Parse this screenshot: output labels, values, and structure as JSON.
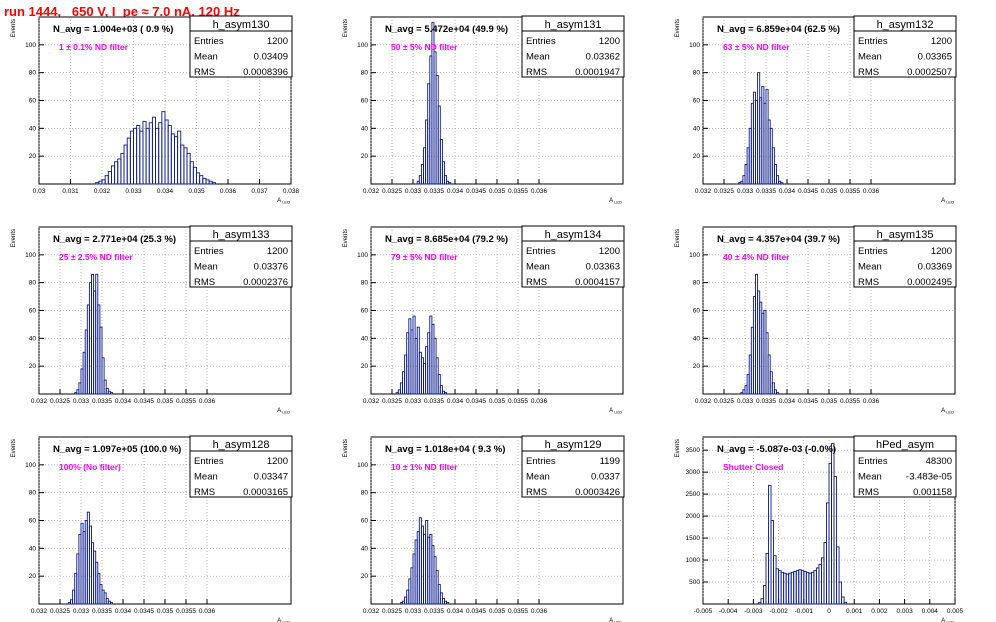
{
  "header": {
    "title": "run 1444,   650 V, I_pe ≈ 7.0 nA, 120 Hz"
  },
  "colors": {
    "histogram": "#0a1a8c",
    "title_text": "#ff0000",
    "filter_text": "#ff00ff",
    "grid": "#9a9a9a"
  },
  "chart_data": [
    {
      "type": "bar",
      "name": "h_asym130",
      "navg": "N_avg = 1.004e+03 ( 0.9 %)",
      "filter": "1 ± 0.1% ND filter",
      "stats": [
        [
          "Entries",
          "1200"
        ],
        [
          "Mean",
          "0.03409"
        ],
        [
          "RMS",
          "0.0008396"
        ]
      ],
      "ylabel": "Events",
      "xlabel": "A_LED",
      "xlim": [
        0.03,
        0.038
      ],
      "ylim": [
        0,
        120
      ],
      "xticks": [
        0.03,
        0.031,
        0.032,
        0.033,
        0.034,
        0.035,
        0.036,
        0.037,
        0.038
      ],
      "xtick_labels": [
        "0.03",
        "0.031",
        "0.032",
        "0.033",
        "0.034",
        "0.035",
        "0.036",
        "0.037",
        "0.038"
      ],
      "yticks": [
        20,
        40,
        60,
        80,
        100
      ],
      "bin_start": 0.0318,
      "bin_width": 0.0001,
      "counts": [
        1,
        2,
        3,
        6,
        9,
        13,
        16,
        18,
        22,
        28,
        33,
        38,
        40,
        42,
        38,
        45,
        40,
        44,
        48,
        40,
        44,
        52,
        46,
        42,
        36,
        34,
        38,
        28,
        26,
        22,
        16,
        12,
        8,
        6,
        4,
        3,
        2,
        1
      ]
    },
    {
      "type": "bar",
      "name": "h_asym131",
      "navg": "N_avg = 5.472e+04 (49.9 %)",
      "filter": "50 ± 5% ND filter",
      "stats": [
        [
          "Entries",
          "1200"
        ],
        [
          "Mean",
          "0.03362"
        ],
        [
          "RMS",
          "0.0001947"
        ]
      ],
      "ylabel": "Events",
      "xlabel": "A_LED",
      "xlim": [
        0.032,
        0.038
      ],
      "ylim": [
        0,
        120
      ],
      "xticks": [
        0.032,
        0.0325,
        0.033,
        0.0335,
        0.034,
        0.0345,
        0.035,
        0.0355,
        0.036
      ],
      "xtick_labels": [
        "0.032",
        "0.0325",
        "0.033",
        "0.0335",
        "0.034",
        "0.0345",
        "0.035",
        "0.0355",
        "0.036"
      ],
      "yticks": [
        20,
        40,
        60,
        80,
        100
      ],
      "bin_start": 0.0331,
      "bin_width": 5e-05,
      "counts": [
        2,
        6,
        14,
        26,
        46,
        72,
        92,
        116,
        95,
        78,
        56,
        32,
        16,
        6,
        2,
        1
      ]
    },
    {
      "type": "bar",
      "name": "h_asym132",
      "navg": "N_avg = 6.859e+04 (62.5 %)",
      "filter": "63 ± 5% ND filter",
      "stats": [
        [
          "Entries",
          "1200"
        ],
        [
          "Mean",
          "0.03365"
        ],
        [
          "RMS",
          "0.0002507"
        ]
      ],
      "ylabel": "Events",
      "xlabel": "A_LED",
      "xlim": [
        0.032,
        0.038
      ],
      "ylim": [
        0,
        120
      ],
      "xticks": [
        0.032,
        0.0325,
        0.033,
        0.0335,
        0.034,
        0.0345,
        0.035,
        0.0355,
        0.036
      ],
      "xtick_labels": [
        "0.032",
        "0.0325",
        "0.033",
        "0.0335",
        "0.034",
        "0.0345",
        "0.035",
        "0.0355",
        "0.036"
      ],
      "yticks": [
        20,
        40,
        60,
        80,
        100
      ],
      "bin_start": 0.03285,
      "bin_width": 5e-05,
      "counts": [
        1,
        2,
        6,
        14,
        26,
        40,
        58,
        66,
        60,
        80,
        62,
        70,
        58,
        68,
        46,
        40,
        26,
        14,
        6,
        2,
        1
      ]
    },
    {
      "type": "bar",
      "name": "h_asym133",
      "navg": "N_avg = 2.771e+04 (25.3 %)",
      "filter": "25 ± 2.5% ND filter",
      "stats": [
        [
          "Entries",
          "1200"
        ],
        [
          "Mean",
          "0.03376"
        ],
        [
          "RMS",
          "0.0002376"
        ]
      ],
      "ylabel": "Events",
      "xlabel": "A_LED",
      "xlim": [
        0.032,
        0.038
      ],
      "ylim": [
        0,
        120
      ],
      "xticks": [
        0.032,
        0.0325,
        0.033,
        0.0335,
        0.034,
        0.0345,
        0.035,
        0.0355,
        0.036
      ],
      "xtick_labels": [
        "0.032",
        "0.0325",
        "0.033",
        "0.0335",
        "0.034",
        "0.0345",
        "0.035",
        "0.0355",
        "0.036"
      ],
      "yticks": [
        20,
        40,
        60,
        80,
        100
      ],
      "bin_start": 0.03285,
      "bin_width": 5e-05,
      "counts": [
        1,
        3,
        8,
        18,
        30,
        46,
        64,
        80,
        86,
        74,
        86,
        64,
        48,
        26,
        10,
        4,
        2,
        1
      ]
    },
    {
      "type": "bar",
      "name": "h_asym134",
      "navg": "N_avg = 8.685e+04 (79.2 %)",
      "filter": "79 ± 5% ND filter",
      "stats": [
        [
          "Entries",
          "1200"
        ],
        [
          "Mean",
          "0.03363"
        ],
        [
          "RMS",
          "0.0004157"
        ]
      ],
      "ylabel": "Events",
      "xlabel": "A_LED",
      "xlim": [
        0.032,
        0.038
      ],
      "ylim": [
        0,
        120
      ],
      "xticks": [
        0.032,
        0.0325,
        0.033,
        0.0335,
        0.034,
        0.0345,
        0.035,
        0.0355,
        0.036
      ],
      "xtick_labels": [
        "0.032",
        "0.0325",
        "0.033",
        "0.0335",
        "0.034",
        "0.0345",
        "0.035",
        "0.0355",
        "0.036"
      ],
      "yticks": [
        20,
        40,
        60,
        80,
        100
      ],
      "bin_start": 0.0326,
      "bin_width": 5e-05,
      "counts": [
        1,
        3,
        8,
        16,
        28,
        44,
        54,
        46,
        56,
        40,
        48,
        30,
        26,
        22,
        34,
        44,
        56,
        50,
        40,
        26,
        14,
        6,
        2,
        1
      ]
    },
    {
      "type": "bar",
      "name": "h_asym135",
      "navg": "N_avg = 4.357e+04 (39.7 %)",
      "filter": "40 ± 4% ND filter",
      "stats": [
        [
          "Entries",
          "1200"
        ],
        [
          "Mean",
          "0.03369"
        ],
        [
          "RMS",
          "0.0002495"
        ]
      ],
      "ylabel": "Events",
      "xlabel": "A_LED",
      "xlim": [
        0.032,
        0.038
      ],
      "ylim": [
        0,
        120
      ],
      "xticks": [
        0.032,
        0.0325,
        0.033,
        0.0335,
        0.034,
        0.0345,
        0.035,
        0.0355,
        0.036
      ],
      "xtick_labels": [
        "0.032",
        "0.0325",
        "0.033",
        "0.0335",
        "0.034",
        "0.0345",
        "0.035",
        "0.0355",
        "0.036"
      ],
      "yticks": [
        20,
        40,
        60,
        80,
        100
      ],
      "bin_start": 0.0329,
      "bin_width": 5e-05,
      "counts": [
        1,
        3,
        6,
        14,
        28,
        48,
        70,
        86,
        74,
        66,
        58,
        60,
        44,
        28,
        16,
        8,
        3,
        1
      ]
    },
    {
      "type": "bar",
      "name": "h_asym128",
      "navg": "N_avg = 1.097e+05 (100.0 %)",
      "filter": "100% (No filter)",
      "stats": [
        [
          "Entries",
          "1200"
        ],
        [
          "Mean",
          "0.03347"
        ],
        [
          "RMS",
          "0.0003165"
        ]
      ],
      "ylabel": "Events",
      "xlabel": "A_LED",
      "xlim": [
        0.032,
        0.038
      ],
      "ylim": [
        0,
        120
      ],
      "xticks": [
        0.032,
        0.0325,
        0.033,
        0.0335,
        0.034,
        0.0345,
        0.035,
        0.0355,
        0.036
      ],
      "xtick_labels": [
        "0.032",
        "0.0325",
        "0.033",
        "0.0335",
        "0.034",
        "0.0345",
        "0.035",
        "0.0355",
        "0.036"
      ],
      "yticks": [
        20,
        40,
        60,
        80,
        100
      ],
      "bin_start": 0.0327,
      "bin_width": 5e-05,
      "counts": [
        1,
        3,
        10,
        22,
        36,
        50,
        58,
        52,
        60,
        66,
        56,
        44,
        38,
        30,
        22,
        14,
        10,
        8,
        4,
        2,
        1
      ]
    },
    {
      "type": "bar",
      "name": "h_asym129",
      "navg": "N_avg = 1.018e+04 ( 9.3 %)",
      "filter": "10 ± 1% ND filter",
      "stats": [
        [
          "Entries",
          "1199"
        ],
        [
          "Mean",
          "0.0337"
        ],
        [
          "RMS",
          "0.0003426"
        ]
      ],
      "ylabel": "Events",
      "xlabel": "A_LED",
      "xlim": [
        0.032,
        0.038
      ],
      "ylim": [
        0,
        120
      ],
      "xticks": [
        0.032,
        0.0325,
        0.033,
        0.0335,
        0.034,
        0.0345,
        0.035,
        0.0355,
        0.036
      ],
      "xtick_labels": [
        "0.032",
        "0.0325",
        "0.033",
        "0.0335",
        "0.034",
        "0.0345",
        "0.035",
        "0.0355",
        "0.036"
      ],
      "yticks": [
        20,
        40,
        60,
        80,
        100
      ],
      "bin_start": 0.0327,
      "bin_width": 5e-05,
      "counts": [
        1,
        2,
        5,
        10,
        18,
        26,
        36,
        46,
        52,
        62,
        56,
        50,
        60,
        48,
        50,
        42,
        34,
        24,
        14,
        8,
        4,
        2,
        1
      ]
    },
    {
      "type": "bar",
      "name": "hPed_asym",
      "navg": "N_avg = -5.087e-03 (-0.0%)",
      "filter": "Shutter Closed",
      "stats": [
        [
          "Entries",
          "48300"
        ],
        [
          "Mean",
          "-3.483e-05"
        ],
        [
          "RMS",
          "0.001158"
        ]
      ],
      "ylabel": "Events",
      "xlabel": "A_LED",
      "xlim": [
        -0.005,
        0.005
      ],
      "ylim": [
        0,
        3800
      ],
      "xticks": [
        -0.005,
        -0.004,
        -0.003,
        -0.002,
        -0.001,
        0,
        0.001,
        0.002,
        0.003,
        0.004,
        0.005
      ],
      "xtick_labels": [
        "-0.005",
        "-0.004",
        "-0.003",
        "-0.002",
        "-0.001",
        "0",
        "0.001",
        "0.002",
        "0.003",
        "0.004",
        "0.005"
      ],
      "yticks": [
        500,
        1000,
        1500,
        2000,
        2500,
        3000,
        3500
      ],
      "bin_start": -0.0028,
      "bin_width": 0.0001,
      "counts": [
        30,
        120,
        420,
        1150,
        2700,
        1900,
        1100,
        800,
        760,
        720,
        700,
        680,
        700,
        720,
        740,
        760,
        780,
        760,
        740,
        720,
        700,
        720,
        760,
        820,
        900,
        1050,
        1400,
        2300,
        3200,
        3650,
        2900,
        1300,
        500,
        160,
        40
      ]
    }
  ]
}
